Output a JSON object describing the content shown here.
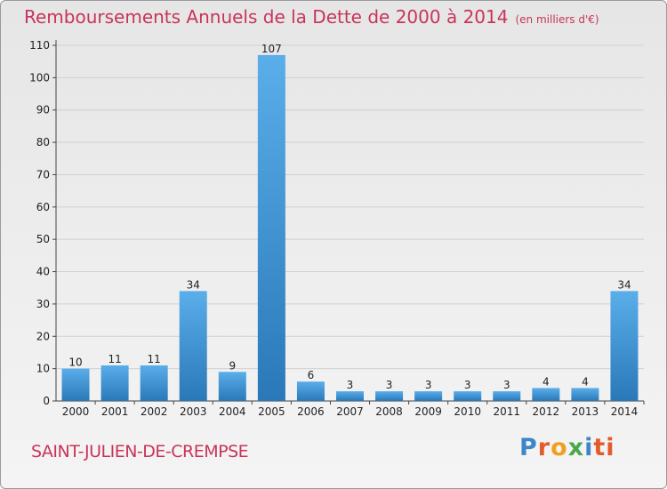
{
  "header": {
    "title": "Remboursements Annuels de la Dette de 2000 à 2014",
    "unit_note": "(en milliers d'€)"
  },
  "footer": {
    "commune": "SAINT-JULIEN-DE-CREMPSE",
    "brand": [
      "P",
      "r",
      "o",
      "x",
      "i",
      "ti"
    ]
  },
  "colors": {
    "title": "#c8345a",
    "bar_light": "#5aaeea",
    "bar_dark": "#2a78b8",
    "grid": "#d0d0d0"
  },
  "chart_data": {
    "type": "bar",
    "title": "Remboursements Annuels de la Dette de 2000 à 2014",
    "xlabel": "",
    "ylabel": "",
    "categories": [
      "2000",
      "2001",
      "2002",
      "2003",
      "2004",
      "2005",
      "2006",
      "2007",
      "2008",
      "2009",
      "2010",
      "2011",
      "2012",
      "2013",
      "2014"
    ],
    "values": [
      10,
      11,
      11,
      34,
      9,
      107,
      6,
      3,
      3,
      3,
      3,
      3,
      4,
      4,
      34
    ],
    "ylim": [
      0,
      110
    ],
    "yticks": [
      0,
      10,
      20,
      30,
      40,
      50,
      60,
      70,
      80,
      90,
      100,
      110
    ],
    "grid": true,
    "legend": "none"
  }
}
